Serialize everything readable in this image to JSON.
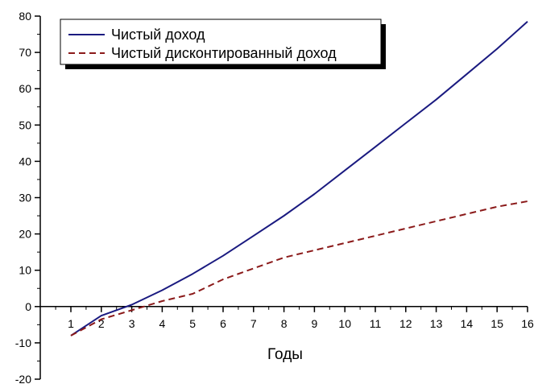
{
  "chart_data": {
    "type": "line",
    "xlabel": "Годы",
    "ylabel": "",
    "xlim": [
      1,
      16
    ],
    "ylim": [
      -20,
      80
    ],
    "x_ticks": [
      1,
      2,
      3,
      4,
      5,
      6,
      7,
      8,
      9,
      10,
      11,
      12,
      13,
      14,
      15,
      16
    ],
    "y_ticks": [
      -20,
      -10,
      0,
      10,
      20,
      30,
      40,
      50,
      60,
      70,
      80
    ],
    "grid": false,
    "legend_position": "top-left",
    "x": [
      1,
      2,
      3,
      4,
      5,
      6,
      7,
      8,
      9,
      10,
      11,
      12,
      13,
      14,
      15,
      16
    ],
    "series": [
      {
        "name": "Чистый доход",
        "color": "#1a1a80",
        "dash": "solid",
        "values": [
          -8,
          -2.5,
          0.5,
          4.5,
          9,
          14,
          19.5,
          25,
          31,
          37.5,
          44,
          50.5,
          57,
          64,
          71,
          78.5
        ]
      },
      {
        "name": "Чистый дисконтированный доход",
        "color": "#8b1a1a",
        "dash": "dashed",
        "values": [
          -8,
          -3.5,
          -1,
          1.5,
          3.5,
          7.5,
          10.5,
          13.5,
          15.5,
          17.5,
          19.5,
          21.5,
          23.5,
          25.5,
          27.5,
          29
        ]
      }
    ]
  }
}
